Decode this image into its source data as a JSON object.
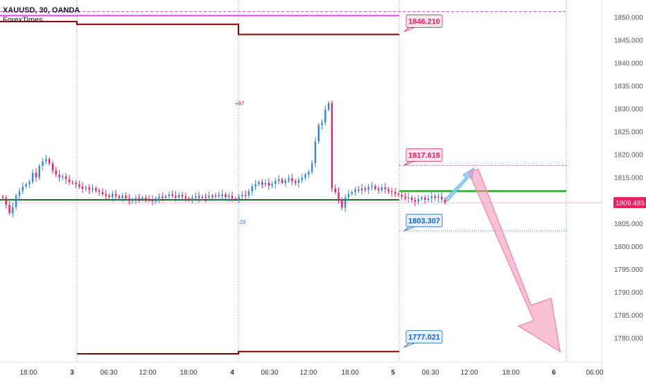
{
  "header": {
    "symbol": "XAUUSD, 30, OANDA",
    "indicator": "ForexTimes"
  },
  "colors": {
    "candle_up": "#2e86de",
    "candle_down": "#e91e63",
    "magenta": "#e040fb",
    "dark_red": "#8b0000",
    "green_line": "#1b5e20",
    "pink_arrow": "#f48fb1",
    "blue_arrow": "#90caf9",
    "price_badge": "#e91e63"
  },
  "chart_data": {
    "type": "candlestick",
    "y_range": [
      1776.5,
      1852.5
    ],
    "price_axis_ticks": [
      "1850.000",
      "1845.000",
      "1840.000",
      "1835.000",
      "1830.000",
      "1825.000",
      "1820.000",
      "1815.000",
      "1810.000",
      "1805.000",
      "1800.000",
      "1795.000",
      "1790.000",
      "1785.000",
      "1780.000"
    ],
    "price_tick_values": [
      1850,
      1845,
      1840,
      1835,
      1830,
      1825,
      1820,
      1815,
      1810,
      1805,
      1800,
      1795,
      1790,
      1785,
      1780
    ],
    "time_axis_labels": [
      "18:00",
      "3",
      "06:30",
      "12:00",
      "18:00",
      "4",
      "06:30",
      "12:00",
      "18:00",
      "5",
      "06:30",
      "12:00",
      "18:00",
      "6",
      "06:00"
    ],
    "bold_time_labels": [
      "3",
      "4",
      "5",
      "6"
    ],
    "current_price": "1809.485",
    "current_price_value": 1809.485,
    "labels": {
      "upper_target": "1846.210",
      "upper_target_value": 1846.21,
      "resistance": "1817.618",
      "resistance_value": 1817.618,
      "support": "1803.307",
      "support_value": 1803.307,
      "lower_target": "1777.021",
      "lower_target_value": 1777.021
    },
    "annotations": [
      "+67",
      "-29"
    ],
    "levels": {
      "magenta_top": 1851.2,
      "magenta_line": 1850.3,
      "dark_red_day2": 1849.0,
      "dark_red_day3": 1848.4,
      "dark_red_day4": 1846.2,
      "dark_red_bottom_day4": 1776.5,
      "dark_red_bottom_day5": 1777.0,
      "green_pivot": 1810.1,
      "green_right": 1812.0
    },
    "closes": [
      1810.5,
      1809,
      1807.2,
      1808.5,
      1811,
      1812,
      1813,
      1813.5,
      1814,
      1816,
      1815,
      1817.5,
      1818.5,
      1819,
      1818,
      1816.5,
      1815.6,
      1815,
      1815.2,
      1814.6,
      1814,
      1813.8,
      1813.5,
      1813,
      1812.5,
      1812.8,
      1812.3,
      1812.6,
      1812.1,
      1811.8,
      1811.3,
      1811,
      1810.7,
      1811.4,
      1810.9,
      1810.5,
      1811,
      1810.4,
      1809.9,
      1810.1,
      1810.5,
      1810.2,
      1810.6,
      1810.3,
      1810.1,
      1809.8,
      1810.4,
      1810.8,
      1810.5,
      1810.9,
      1811.3,
      1811,
      1810.6,
      1811.2,
      1810.8,
      1810.4,
      1810.1,
      1810.6,
      1810.9,
      1810.5,
      1810.8,
      1810.6,
      1811,
      1810.7,
      1811.1,
      1810.9,
      1811.3,
      1810.7,
      1811,
      1810.4,
      1810.2,
      1810.8,
      1811.2,
      1811,
      1812,
      1813,
      1813.5,
      1814,
      1813.4,
      1813.8,
      1813.2,
      1813.6,
      1814.2,
      1814.6,
      1813.8,
      1814.3,
      1814.8,
      1814.2,
      1813.8,
      1814.4,
      1814.9,
      1815.6,
      1816.2,
      1818.1,
      1822.8,
      1826.4,
      1827,
      1829.8,
      1831.2,
      1812.6,
      1811.8,
      1810.2,
      1808.4,
      1810.6,
      1811.4,
      1811.8,
      1812.3,
      1812.1,
      1812.6,
      1812.3,
      1812.9,
      1813.1,
      1812.5,
      1812.2,
      1812.8,
      1812.4,
      1812,
      1811.8,
      1811.4,
      1811.2,
      1810.8,
      1810.4,
      1810.6,
      1810.1,
      1809.7,
      1810.3,
      1810.6,
      1810.1,
      1810.4,
      1810.9,
      1810.5,
      1810.8,
      1810.2,
      1809.485
    ]
  }
}
